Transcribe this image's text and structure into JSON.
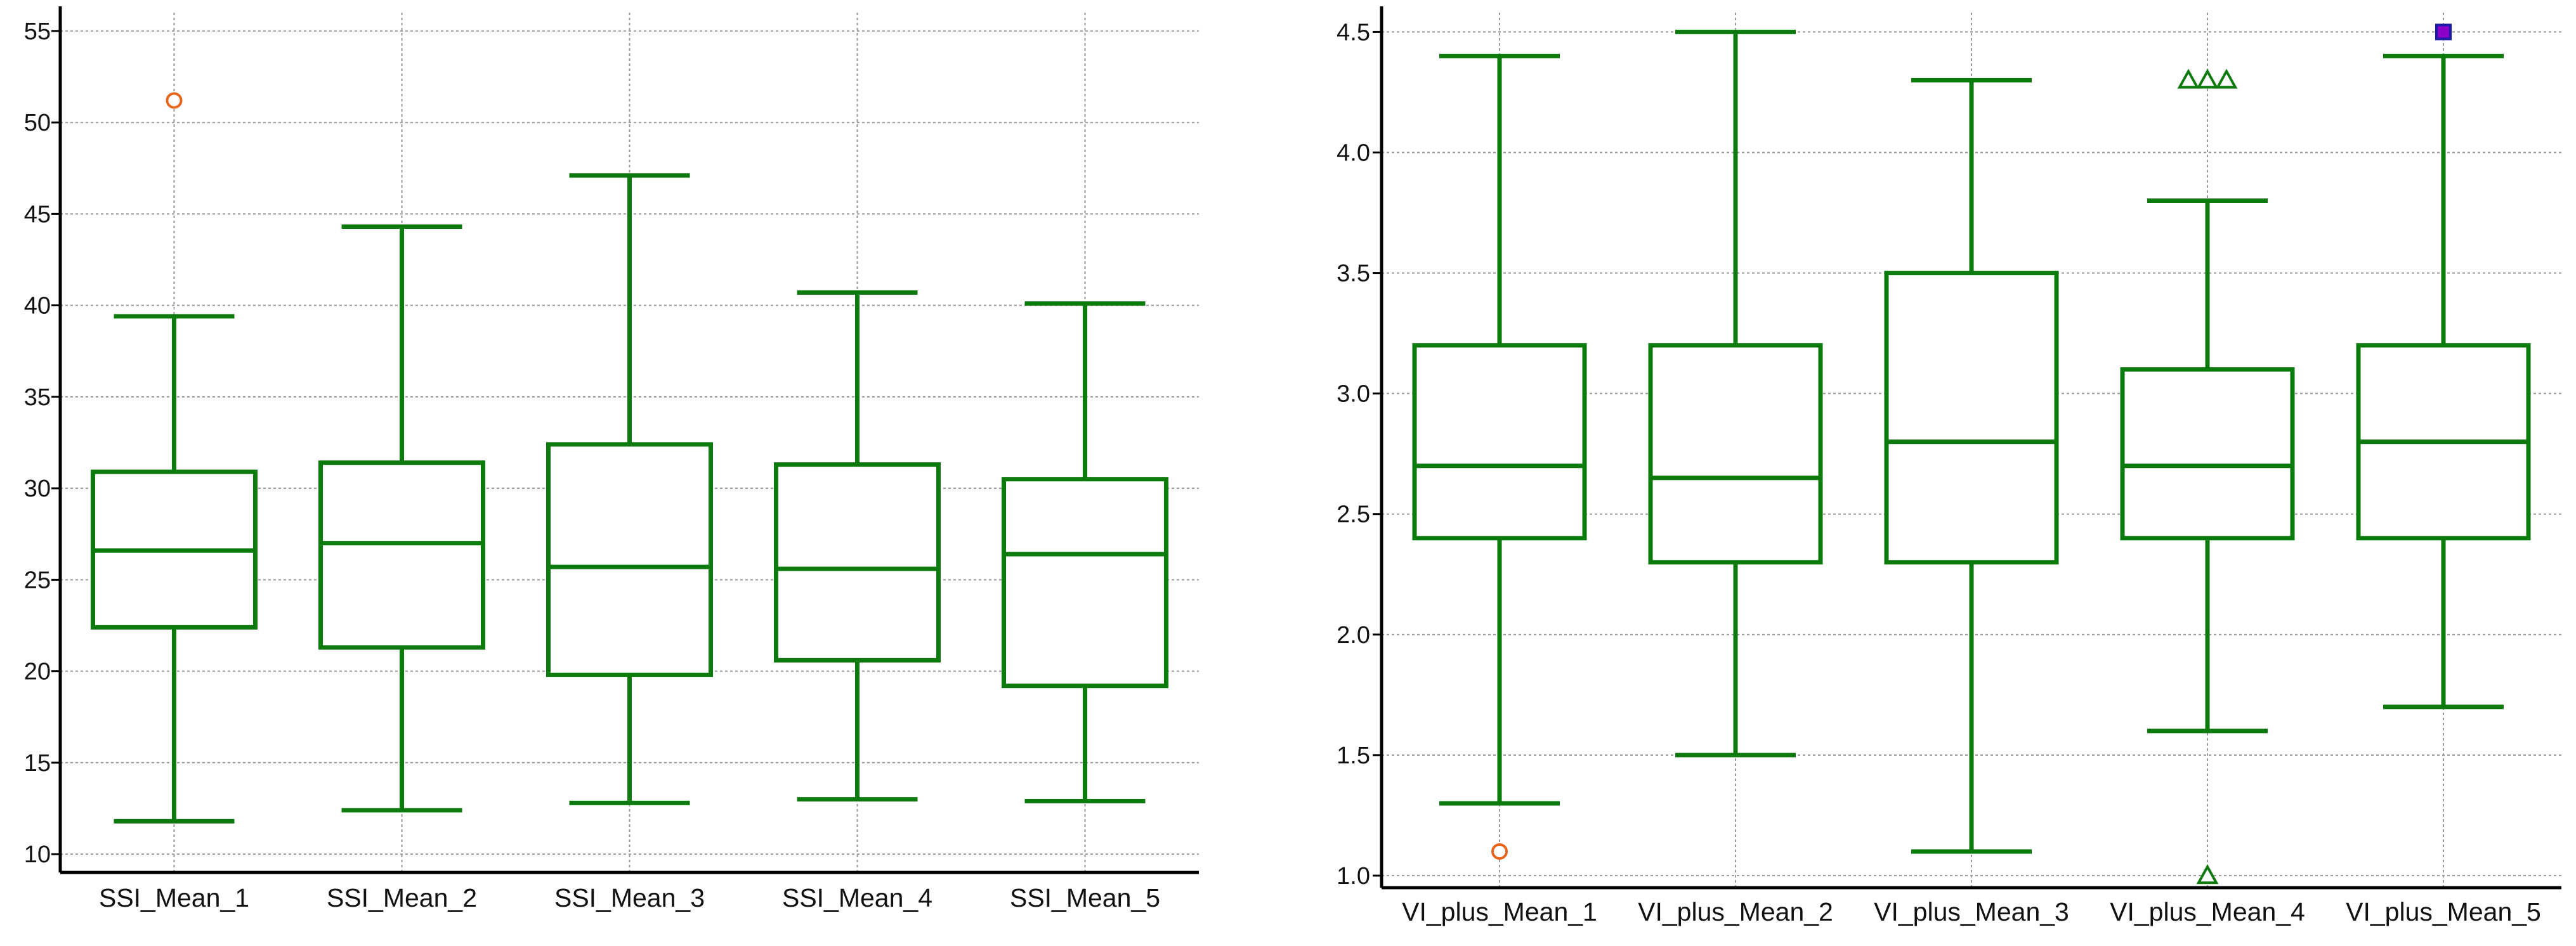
{
  "chart_data": [
    {
      "type": "box",
      "ylim": [
        9,
        56
      ],
      "yticks": [
        10,
        15,
        20,
        25,
        30,
        35,
        40,
        45,
        50,
        55
      ],
      "grid": true,
      "box_color": "#0d7a0d",
      "categories": [
        "SSI_Mean_1",
        "SSI_Mean_2",
        "SSI_Mean_3",
        "SSI_Mean_4",
        "SSI_Mean_5"
      ],
      "boxes": [
        {
          "min": 11.8,
          "q1": 22.4,
          "median": 26.6,
          "q3": 30.9,
          "max": 39.4,
          "outliers": [
            {
              "value": 51.2,
              "shape": "circle",
              "color": "#e8661c"
            }
          ]
        },
        {
          "min": 12.4,
          "q1": 21.3,
          "median": 27.0,
          "q3": 31.4,
          "max": 44.3,
          "outliers": []
        },
        {
          "min": 12.8,
          "q1": 19.8,
          "median": 25.7,
          "q3": 32.4,
          "max": 47.1,
          "outliers": []
        },
        {
          "min": 13.0,
          "q1": 20.6,
          "median": 25.6,
          "q3": 31.3,
          "max": 40.7,
          "outliers": []
        },
        {
          "min": 12.9,
          "q1": 19.2,
          "median": 26.4,
          "q3": 30.5,
          "max": 40.1,
          "outliers": []
        }
      ]
    },
    {
      "type": "box",
      "ylim": [
        0.95,
        4.58
      ],
      "yticks": [
        "1.0",
        "1.5",
        "2.0",
        "2.5",
        "3.0",
        "3.5",
        "4.0",
        "4.5"
      ],
      "grid": true,
      "box_color": "#0d7a0d",
      "categories": [
        "VI_plus_Mean_1",
        "VI_plus_Mean_2",
        "VI_plus_Mean_3",
        "VI_plus_Mean_4",
        "VI_plus_Mean_5"
      ],
      "boxes": [
        {
          "min": 1.3,
          "q1": 2.4,
          "median": 2.7,
          "q3": 3.2,
          "max": 4.4,
          "outliers": [
            {
              "value": 1.1,
              "shape": "circle",
              "color": "#e8661c"
            }
          ]
        },
        {
          "min": 1.5,
          "q1": 2.3,
          "median": 2.65,
          "q3": 3.2,
          "max": 4.5,
          "outliers": []
        },
        {
          "min": 1.1,
          "q1": 2.3,
          "median": 2.8,
          "q3": 3.5,
          "max": 4.3,
          "outliers": []
        },
        {
          "min": 1.6,
          "q1": 2.4,
          "median": 2.7,
          "q3": 3.1,
          "max": 3.8,
          "outliers": [
            {
              "value": 4.3,
              "shape": "triangle",
              "color": "#0d7a0d"
            },
            {
              "value": 4.3,
              "shape": "triangle",
              "color": "#0d7a0d"
            },
            {
              "value": 4.3,
              "shape": "triangle",
              "color": "#0d7a0d"
            },
            {
              "value": 1.0,
              "shape": "triangle",
              "color": "#0d7a0d"
            }
          ]
        },
        {
          "min": 1.7,
          "q1": 2.4,
          "median": 2.8,
          "q3": 3.2,
          "max": 4.4,
          "outliers": [
            {
              "value": 4.5,
              "shape": "square",
              "color": "#8a00c8",
              "edge": "#1a1aa6"
            }
          ]
        }
      ]
    }
  ]
}
